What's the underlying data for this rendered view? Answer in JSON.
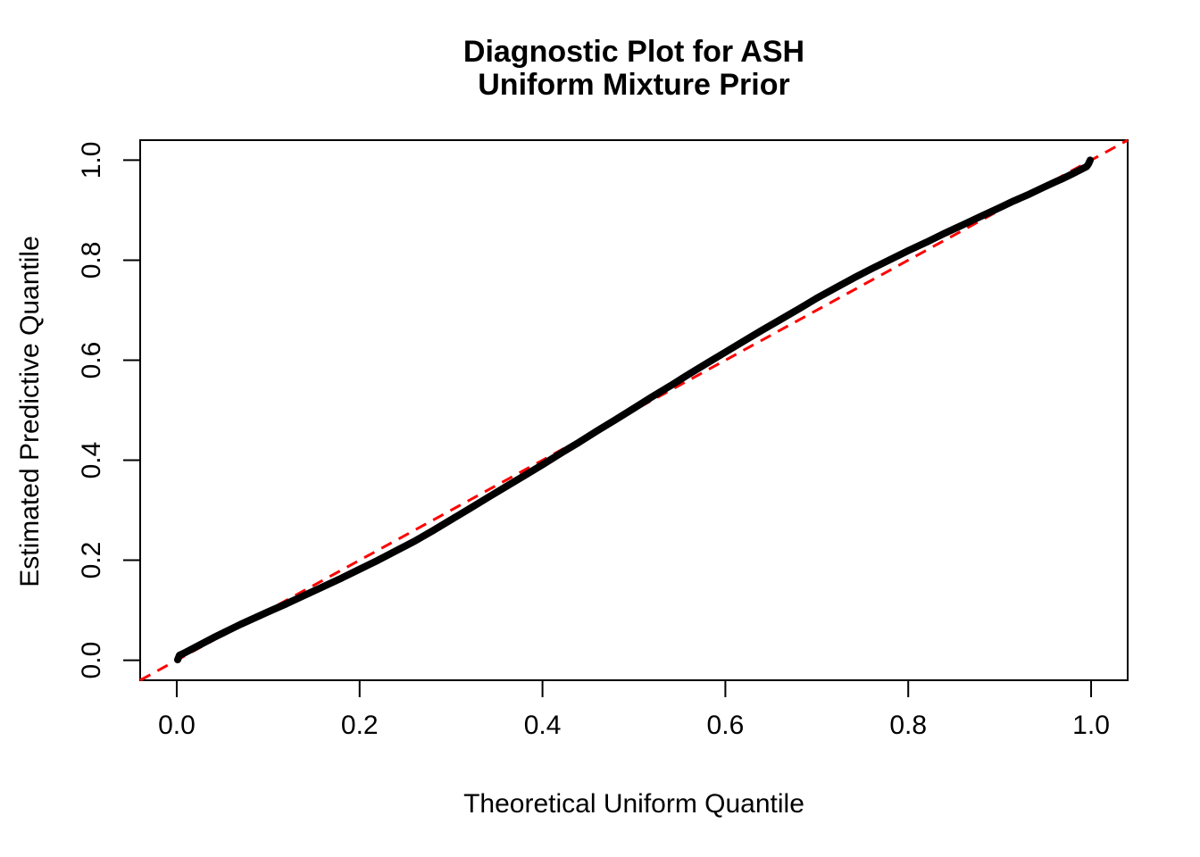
{
  "title": {
    "line1": "Diagnostic Plot for ASH",
    "line2": "Uniform Mixture Prior"
  },
  "colors": {
    "curve": "#000000",
    "reference_line": "#FF0000",
    "axis": "#000000",
    "background": "#FFFFFF"
  },
  "chart_data": {
    "type": "line",
    "title": "Diagnostic Plot for ASH\nUniform Mixture Prior",
    "xlabel": "Theoretical Uniform Quantile",
    "ylabel": "Estimated Predictive Quantile",
    "xlim": [
      -0.04,
      1.04
    ],
    "ylim": [
      -0.04,
      1.04
    ],
    "grid": false,
    "legend_position": "none",
    "x_tick_values": [
      0.0,
      0.2,
      0.4,
      0.6,
      0.8,
      1.0
    ],
    "x_tick_labels": [
      "0.0",
      "0.2",
      "0.4",
      "0.6",
      "0.8",
      "1.0"
    ],
    "y_tick_values": [
      0.0,
      0.2,
      0.4,
      0.6,
      0.8,
      1.0
    ],
    "y_tick_labels": [
      "0.0",
      "0.2",
      "0.4",
      "0.6",
      "0.8",
      "1.0"
    ],
    "series": [
      {
        "name": "estimated-predictive-quantiles",
        "style": "thick-point-curve",
        "color": "#000000",
        "stroke_width": 8,
        "points": [
          [
            0.001,
            0.001
          ],
          [
            0.003,
            0.01
          ],
          [
            0.01,
            0.016
          ],
          [
            0.04,
            0.045
          ],
          [
            0.07,
            0.072
          ],
          [
            0.1,
            0.097
          ],
          [
            0.12,
            0.113
          ],
          [
            0.14,
            0.13
          ],
          [
            0.16,
            0.147
          ],
          [
            0.18,
            0.164
          ],
          [
            0.2,
            0.182
          ],
          [
            0.22,
            0.2
          ],
          [
            0.24,
            0.219
          ],
          [
            0.26,
            0.238
          ],
          [
            0.28,
            0.259
          ],
          [
            0.3,
            0.281
          ],
          [
            0.32,
            0.303
          ],
          [
            0.34,
            0.325
          ],
          [
            0.36,
            0.347
          ],
          [
            0.38,
            0.369
          ],
          [
            0.4,
            0.391
          ],
          [
            0.42,
            0.414
          ],
          [
            0.44,
            0.436
          ],
          [
            0.46,
            0.459
          ],
          [
            0.48,
            0.481
          ],
          [
            0.5,
            0.504
          ],
          [
            0.52,
            0.527
          ],
          [
            0.54,
            0.549
          ],
          [
            0.56,
            0.572
          ],
          [
            0.58,
            0.594
          ],
          [
            0.6,
            0.616
          ],
          [
            0.62,
            0.638
          ],
          [
            0.64,
            0.66
          ],
          [
            0.66,
            0.681
          ],
          [
            0.68,
            0.702
          ],
          [
            0.7,
            0.724
          ],
          [
            0.72,
            0.744
          ],
          [
            0.74,
            0.764
          ],
          [
            0.76,
            0.783
          ],
          [
            0.78,
            0.801
          ],
          [
            0.8,
            0.819
          ],
          [
            0.82,
            0.836
          ],
          [
            0.84,
            0.854
          ],
          [
            0.86,
            0.871
          ],
          [
            0.88,
            0.888
          ],
          [
            0.9,
            0.905
          ],
          [
            0.915,
            0.918
          ],
          [
            0.93,
            0.93
          ],
          [
            0.945,
            0.943
          ],
          [
            0.96,
            0.956
          ],
          [
            0.97,
            0.964
          ],
          [
            0.98,
            0.973
          ],
          [
            0.995,
            0.987
          ],
          [
            0.997,
            0.992
          ],
          [
            0.999,
            1.0
          ]
        ]
      },
      {
        "name": "reference-line-y-equals-x",
        "style": "dashed-line",
        "color": "#FF0000",
        "stroke_width": 3,
        "dash": "13 9",
        "points": [
          [
            -0.04,
            -0.04
          ],
          [
            1.04,
            1.04
          ]
        ]
      }
    ]
  }
}
